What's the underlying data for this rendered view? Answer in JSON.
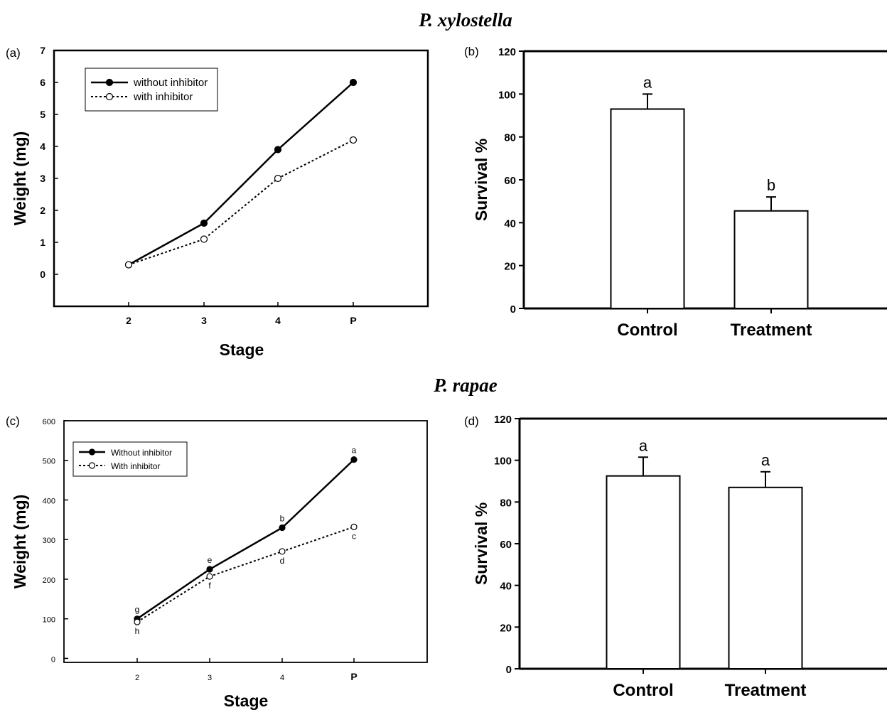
{
  "figure": {
    "species_top": "P. xylostella",
    "species_bottom": "P. rapae"
  },
  "chart_data": [
    {
      "panel": "(a)",
      "type": "line",
      "categories": [
        "2",
        "3",
        "4",
        "P"
      ],
      "xlabel": "Stage",
      "ylabel": "Weight (mg)",
      "ylim": [
        -1,
        7
      ],
      "yticks": [
        0,
        1,
        2,
        3,
        4,
        5,
        6,
        7
      ],
      "legend_position": "top-left",
      "series": [
        {
          "name": "without inhibitor",
          "marker": "filled-circle",
          "line": "solid",
          "values": [
            0.3,
            1.6,
            3.9,
            6.0
          ]
        },
        {
          "name": "with inhibitor",
          "marker": "open-circle",
          "line": "dotted",
          "values": [
            0.3,
            1.1,
            3.0,
            4.2
          ]
        }
      ]
    },
    {
      "panel": "(b)",
      "type": "bar",
      "categories": [
        "Control",
        "Treatment"
      ],
      "values": [
        93,
        45.5
      ],
      "errors": [
        7,
        6.5
      ],
      "significance": [
        "a",
        "b"
      ],
      "ylabel": "Survival %",
      "ylim": [
        0,
        120
      ],
      "yticks": [
        0,
        20,
        40,
        60,
        80,
        100,
        120
      ]
    },
    {
      "panel": "(c)",
      "type": "line",
      "categories": [
        "2",
        "3",
        "4",
        "P"
      ],
      "xlabel": "Stage",
      "ylabel": "Weight (mg)",
      "ylim": [
        -10,
        600
      ],
      "yticks": [
        0,
        100,
        200,
        300,
        400,
        500,
        600
      ],
      "legend_position": "top-left",
      "series": [
        {
          "name": "Without inhibitor",
          "marker": "filled-circle",
          "line": "solid",
          "values": [
            100,
            225,
            330,
            502
          ],
          "significance": [
            "g",
            "e",
            "b",
            "a"
          ]
        },
        {
          "name": "With inhibitor",
          "marker": "open-circle",
          "line": "dotted",
          "values": [
            92,
            207,
            270,
            332
          ],
          "significance": [
            "h",
            "f",
            "d",
            "c"
          ]
        }
      ]
    },
    {
      "panel": "(d)",
      "type": "bar",
      "categories": [
        "Control",
        "Treatment"
      ],
      "values": [
        92.5,
        87
      ],
      "errors": [
        9,
        7.5
      ],
      "significance": [
        "a",
        "a"
      ],
      "ylabel": "Survival %",
      "ylim": [
        0,
        120
      ],
      "yticks": [
        0,
        20,
        40,
        60,
        80,
        100,
        120
      ]
    }
  ]
}
